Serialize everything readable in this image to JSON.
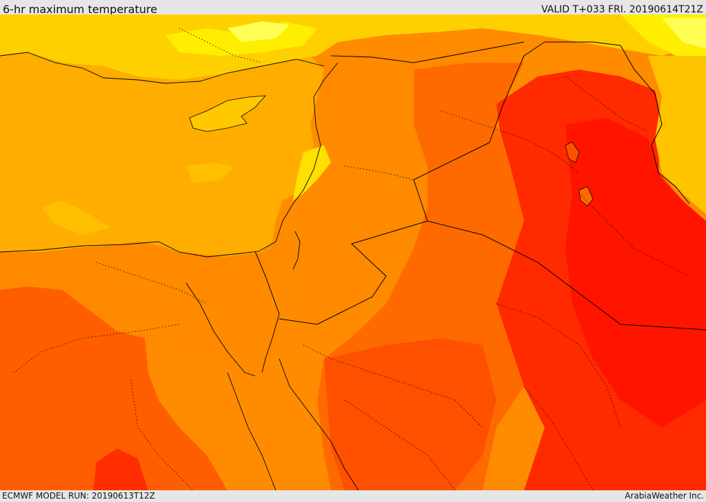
{
  "header": {
    "title": "6-hr maximum temperature",
    "valid": "VALID T+033 FRI. 20190614T21Z"
  },
  "footer": {
    "model_run": "ECMWF MODEL RUN: 20190613T12Z",
    "credit": "ArabiaWeather Inc."
  },
  "palette": {
    "light_yellow": "#ffff66",
    "yellow": "#ffee00",
    "gold": "#ffcc00",
    "amber": "#ffaa00",
    "orange": "#ff8800",
    "dark_orange": "#ff5a00",
    "red_orange": "#ff3a00",
    "red": "#ff1100",
    "border_line": "#000000"
  }
}
